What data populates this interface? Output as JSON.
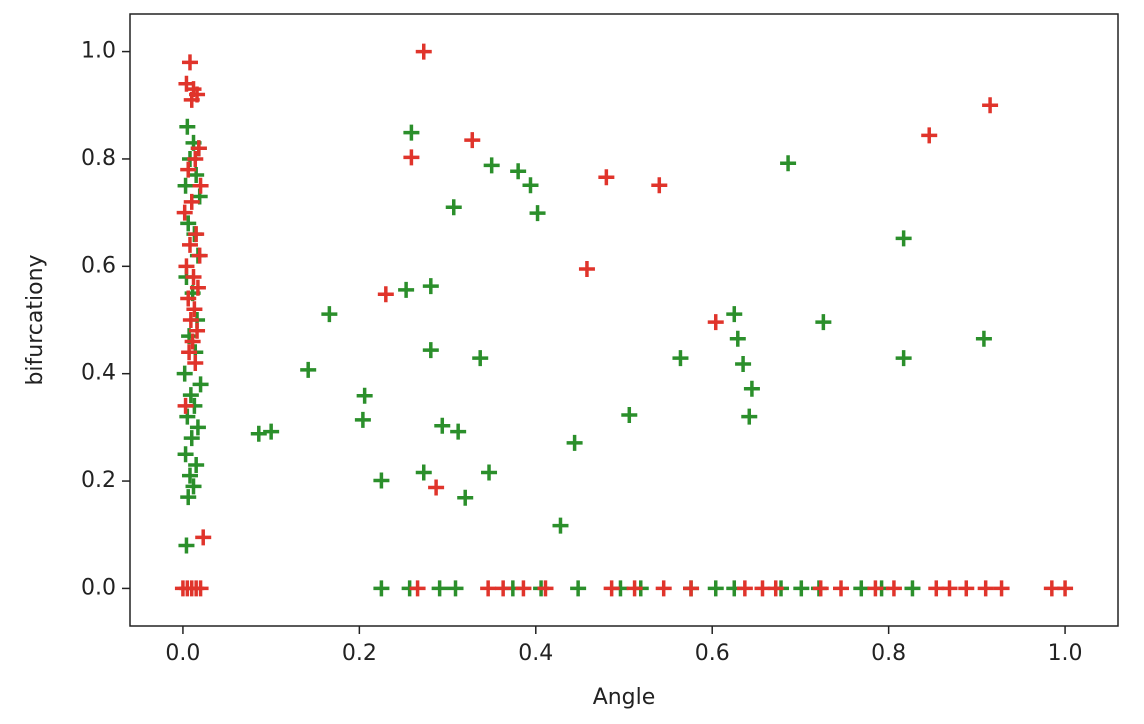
{
  "chart_data": {
    "type": "scatter",
    "xlabel": "Angle",
    "ylabel": "bifurcationy",
    "xlim": [
      -0.06,
      1.06
    ],
    "ylim": [
      -0.07,
      1.07
    ],
    "xticks": [
      {
        "value": 0,
        "label": "0.0"
      },
      {
        "value": 0.2,
        "label": "0.2"
      },
      {
        "value": 0.4,
        "label": "0.4"
      },
      {
        "value": 0.6,
        "label": "0.6"
      },
      {
        "value": 0.8,
        "label": "0.8"
      },
      {
        "value": 1,
        "label": "1.0"
      }
    ],
    "yticks": [
      {
        "value": 0,
        "label": "0.0"
      },
      {
        "value": 0.2,
        "label": "0.2"
      },
      {
        "value": 0.4,
        "label": "0.4"
      },
      {
        "value": 0.6,
        "label": "0.6"
      },
      {
        "value": 0.8,
        "label": "0.8"
      },
      {
        "value": 1,
        "label": "1.0"
      }
    ],
    "marker": "+",
    "series": [
      {
        "color": "#2b8f2b",
        "x": [
          0.259,
          0.35,
          0.38,
          0.394,
          0.402,
          0.307,
          0.686,
          0.817,
          0.166,
          0.253,
          0.281,
          0.625,
          0.629,
          0.726,
          0.281,
          0.337,
          0.564,
          0.635,
          0.817,
          0.908,
          0.142,
          0.645,
          0.206,
          0.204,
          0.506,
          0.642,
          0.086,
          0.1,
          0.294,
          0.312,
          0.444,
          0.273,
          0.347,
          0.225,
          0.32,
          0.428,
          0.225,
          0.257,
          0.291,
          0.309,
          0.374,
          0.406,
          0.448,
          0.496,
          0.519,
          0.576,
          0.604,
          0.625,
          0.678,
          0.701,
          0.721,
          0.769,
          0.792,
          0.827,
          0.005,
          0.012,
          0.018,
          0.008,
          0.015,
          0.003,
          0.019,
          0.006,
          0.013,
          0.017,
          0.004,
          0.011,
          0.016,
          0.007,
          0.014,
          0.002,
          0.02,
          0.009,
          0.013,
          0.005,
          0.017,
          0.01,
          0.003,
          0.015,
          0.008,
          0.012,
          0.006,
          0.004
        ],
        "values": [
          0.849,
          0.788,
          0.777,
          0.751,
          0.699,
          0.71,
          0.792,
          0.652,
          0.511,
          0.556,
          0.563,
          0.511,
          0.465,
          0.496,
          0.444,
          0.429,
          0.429,
          0.418,
          0.429,
          0.465,
          0.407,
          0.372,
          0.359,
          0.314,
          0.323,
          0.32,
          0.288,
          0.292,
          0.303,
          0.292,
          0.271,
          0.216,
          0.216,
          0.201,
          0.169,
          0.117,
          0,
          0,
          0,
          0,
          0,
          0,
          0,
          0,
          0,
          0,
          0,
          0,
          0,
          0,
          0,
          0,
          0,
          0,
          0.86,
          0.83,
          0.82,
          0.8,
          0.77,
          0.75,
          0.73,
          0.68,
          0.66,
          0.62,
          0.58,
          0.55,
          0.5,
          0.47,
          0.44,
          0.4,
          0.38,
          0.36,
          0.34,
          0.32,
          0.3,
          0.28,
          0.25,
          0.23,
          0.21,
          0.19,
          0.17,
          0.08
        ]
      },
      {
        "color": "#e0342b",
        "x": [
          0.273,
          0.915,
          0.846,
          0.328,
          0.259,
          0.48,
          0.54,
          0.458,
          0.23,
          0.604,
          0.287,
          0.023,
          0.266,
          0.346,
          0.363,
          0.386,
          0.411,
          0.486,
          0.512,
          0.545,
          0.576,
          0.637,
          0.657,
          0.672,
          0.723,
          0.746,
          0.785,
          0.806,
          0.854,
          0.869,
          0.888,
          0.91,
          0.928,
          0.985,
          1.0,
          0.008,
          0.004,
          0.012,
          0.016,
          0.01,
          0.018,
          0.014,
          0.006,
          0.02,
          0.01,
          0.002,
          0.015,
          0.008,
          0.019,
          0.004,
          0.012,
          0.017,
          0.006,
          0.013,
          0.009,
          0.016,
          0.011,
          0.007,
          0.014,
          0.003,
          0.0,
          0.005,
          0.01,
          0.015,
          0.02
        ],
        "values": [
          1.0,
          0.9,
          0.844,
          0.835,
          0.803,
          0.766,
          0.751,
          0.595,
          0.548,
          0.496,
          0.188,
          0.095,
          0,
          0,
          0,
          0,
          0,
          0,
          0,
          0,
          0,
          0,
          0,
          0,
          0,
          0,
          0,
          0,
          0,
          0,
          0,
          0,
          0,
          0,
          0,
          0.98,
          0.94,
          0.93,
          0.92,
          0.91,
          0.82,
          0.8,
          0.78,
          0.75,
          0.72,
          0.7,
          0.66,
          0.64,
          0.62,
          0.6,
          0.58,
          0.56,
          0.54,
          0.52,
          0.5,
          0.48,
          0.46,
          0.44,
          0.42,
          0.34,
          0,
          0,
          0,
          0,
          0
        ]
      }
    ]
  }
}
